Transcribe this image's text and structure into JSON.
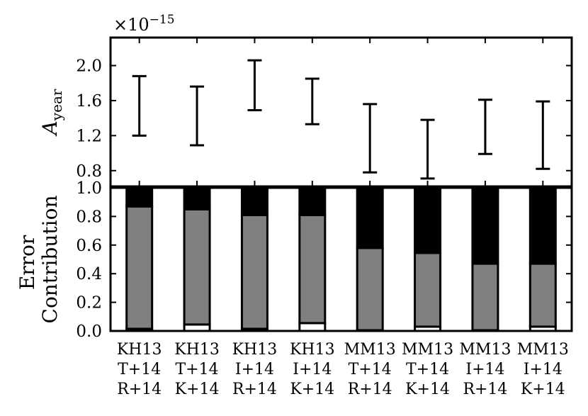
{
  "chart_data": [
    {
      "type": "errorbar",
      "panel": "top",
      "exponent_label": "×10",
      "exponent_power": "−15",
      "ylabel_main": "A",
      "ylabel_sub": "year",
      "ylim": [
        0.62,
        2.32
      ],
      "yticks": [
        0.8,
        1.2,
        1.6,
        2.0
      ],
      "ytick_labels": [
        "0.8",
        "1.2",
        "1.6",
        "2.0"
      ],
      "intervals": [
        {
          "low": 1.2,
          "high": 1.88
        },
        {
          "low": 1.09,
          "high": 1.76
        },
        {
          "low": 1.49,
          "high": 2.06
        },
        {
          "low": 1.33,
          "high": 1.85
        },
        {
          "low": 0.78,
          "high": 1.56
        },
        {
          "low": 0.71,
          "high": 1.38
        },
        {
          "low": 0.99,
          "high": 1.61
        },
        {
          "low": 0.82,
          "high": 1.59
        }
      ]
    },
    {
      "type": "bar",
      "stacked": true,
      "panel": "bottom",
      "ylabel": [
        "Error",
        "Contribution"
      ],
      "ylim": [
        0.0,
        1.0
      ],
      "yticks": [
        0.0,
        0.2,
        0.4,
        0.6,
        0.8,
        1.0
      ],
      "ytick_labels": [
        "0.0",
        "0.2",
        "0.4",
        "0.6",
        "0.8",
        "1.0"
      ],
      "categories": [
        [
          "KH13",
          "T+14",
          "R+14"
        ],
        [
          "KH13",
          "T+14",
          "K+14"
        ],
        [
          "KH13",
          "I+14",
          "R+14"
        ],
        [
          "KH13",
          "I+14",
          "K+14"
        ],
        [
          "MM13",
          "T+14",
          "R+14"
        ],
        [
          "MM13",
          "T+14",
          "K+14"
        ],
        [
          "MM13",
          "I+14",
          "R+14"
        ],
        [
          "MM13",
          "I+14",
          "K+14"
        ]
      ],
      "series": [
        {
          "color": "#ffffff",
          "values": [
            0.015,
            0.045,
            0.015,
            0.055,
            0.005,
            0.03,
            0.005,
            0.03
          ]
        },
        {
          "color": "#808080",
          "values": [
            0.855,
            0.805,
            0.795,
            0.755,
            0.575,
            0.515,
            0.465,
            0.44
          ]
        },
        {
          "color": "#000000",
          "values": [
            0.13,
            0.15,
            0.19,
            0.19,
            0.42,
            0.455,
            0.53,
            0.53
          ]
        }
      ]
    }
  ]
}
